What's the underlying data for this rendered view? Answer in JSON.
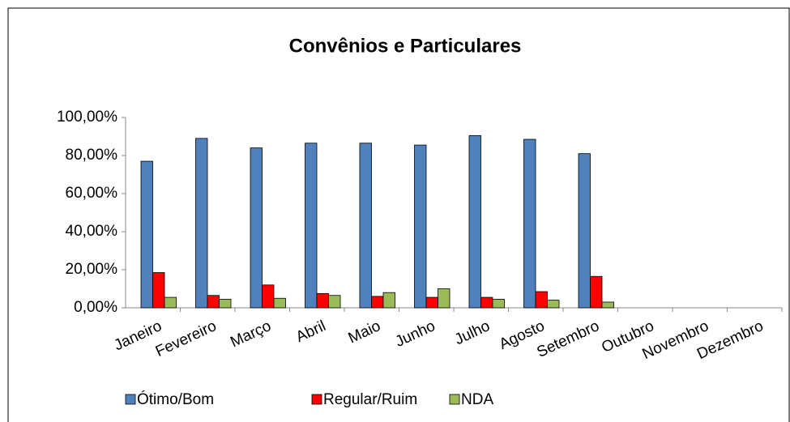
{
  "chart_data": {
    "type": "bar",
    "title": "Convênios e Particulares",
    "categories": [
      "Janeiro",
      "Fevereiro",
      "Março",
      "Abril",
      "Maio",
      "Junho",
      "Julho",
      "Agosto",
      "Setembro",
      "Outubro",
      "Novembro",
      "Dezembro"
    ],
    "series": [
      {
        "name": "Ótimo/Bom",
        "color": "#4f81bd",
        "values": [
          77,
          89,
          84,
          86.5,
          86.5,
          85.5,
          90.5,
          88.5,
          81,
          null,
          null,
          null
        ]
      },
      {
        "name": "Regular/Ruim",
        "color": "#ff0000",
        "values": [
          18.5,
          6.5,
          12,
          7.5,
          6,
          5.5,
          5.5,
          8.5,
          16.5,
          null,
          null,
          null
        ]
      },
      {
        "name": "NDA",
        "color": "#9bbb59",
        "values": [
          5.5,
          4.5,
          5,
          6.5,
          8,
          10,
          4.5,
          4,
          3,
          null,
          null,
          null
        ]
      }
    ],
    "ylim": [
      0,
      100
    ],
    "yticks": [
      {
        "value": 0,
        "label": "0,00%"
      },
      {
        "value": 20,
        "label": "20,00%"
      },
      {
        "value": 40,
        "label": "40,00%"
      },
      {
        "value": 60,
        "label": "60,00%"
      },
      {
        "value": 80,
        "label": "80,00%"
      },
      {
        "value": 100,
        "label": "100,00%"
      }
    ],
    "grid": false,
    "legend": "bottom"
  }
}
